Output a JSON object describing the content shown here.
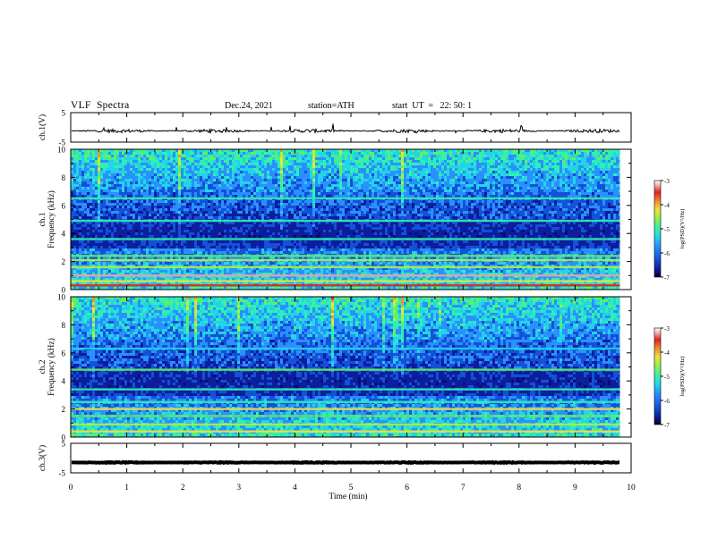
{
  "header": {
    "title": "VLF  Spectra",
    "date": "Dec.24, 2021",
    "station": "station=ATH",
    "start": "start  UT  =   22: 50: 1"
  },
  "colors": {
    "spectrogram_bg": "#0a1a86",
    "colormap": [
      "#000000",
      "#0a0a6e",
      "#1040c8",
      "#2a8cff",
      "#22d8e0",
      "#40f0a0",
      "#a0f040",
      "#f0e040",
      "#f08030",
      "#e02020",
      "#f0a0a0",
      "#ffffff"
    ]
  },
  "chart_data": [
    {
      "type": "line",
      "name": "ch1-waveform",
      "ylabel": "ch.1(V)",
      "ylim": [
        -5,
        5
      ],
      "yticks": [
        "5",
        "-5"
      ],
      "x_range": [
        0,
        10
      ],
      "data_extent_min": 9.8,
      "baseline_v": -1.2,
      "noise_amplitude_v": 0.6
    },
    {
      "type": "heatmap",
      "name": "ch1-spectrogram",
      "ylabel": "ch.1\nFrequency (kHz)",
      "ylim": [
        0,
        10
      ],
      "yticks": [
        "0",
        "2",
        "4",
        "6",
        "8",
        "10"
      ],
      "x_range": [
        0,
        10
      ],
      "data_extent_min": 9.8,
      "colorbar": {
        "label": "log(PSD)(V²/Hz)",
        "range": [
          -7,
          -3
        ],
        "ticks": [
          "-3",
          "-4",
          "-5",
          "-6",
          "-7"
        ]
      },
      "bands": [
        {
          "f_khz": 0.3,
          "level": -3.4
        },
        {
          "f_khz": 0.6,
          "level": -4.0
        },
        {
          "f_khz": 1.0,
          "level": -3.2
        },
        {
          "f_khz": 1.6,
          "level": -4.6
        },
        {
          "f_khz": 2.1,
          "level": -4.4
        },
        {
          "f_khz": 2.4,
          "level": -4.8
        },
        {
          "f_khz": 3.6,
          "level": -5.2
        },
        {
          "f_khz": 4.9,
          "level": -5.0
        },
        {
          "f_khz": 6.5,
          "level": -5.2
        }
      ]
    },
    {
      "type": "heatmap",
      "name": "ch2-spectrogram",
      "ylabel": "ch.2\nFrequency (kHz)",
      "ylim": [
        0,
        10
      ],
      "yticks": [
        "0",
        "2",
        "4",
        "6",
        "8",
        "10"
      ],
      "x_range": [
        0,
        10
      ],
      "data_extent_min": 9.8,
      "colorbar": {
        "label": "log(PSD)(V²/Hz)",
        "range": [
          -7,
          -3
        ],
        "ticks": [
          "-3",
          "-4",
          "-5",
          "-6",
          "-7"
        ]
      },
      "bands": [
        {
          "f_khz": 0.4,
          "level": -4.2
        },
        {
          "f_khz": 0.9,
          "level": -4.6
        },
        {
          "f_khz": 1.5,
          "level": -4.9
        },
        {
          "f_khz": 2.0,
          "level": -4.0
        },
        {
          "f_khz": 2.5,
          "level": -5.0
        },
        {
          "f_khz": 3.4,
          "level": -5.1
        },
        {
          "f_khz": 4.8,
          "level": -4.9
        },
        {
          "f_khz": 6.3,
          "level": -5.3
        }
      ]
    },
    {
      "type": "line",
      "name": "ch3-waveform",
      "ylabel": "ch.3(V)",
      "ylim": [
        -5,
        5
      ],
      "yticks": [
        "5",
        "-5"
      ],
      "x_range": [
        0,
        10
      ],
      "data_extent_min": 9.8,
      "baseline_v": -1.5,
      "noise_amplitude_v": 0.15
    }
  ],
  "xaxis": {
    "label": "Time  (min)",
    "range": [
      0,
      10
    ],
    "ticks": [
      "0",
      "1",
      "2",
      "3",
      "4",
      "5",
      "6",
      "7",
      "8",
      "9",
      "10"
    ]
  }
}
